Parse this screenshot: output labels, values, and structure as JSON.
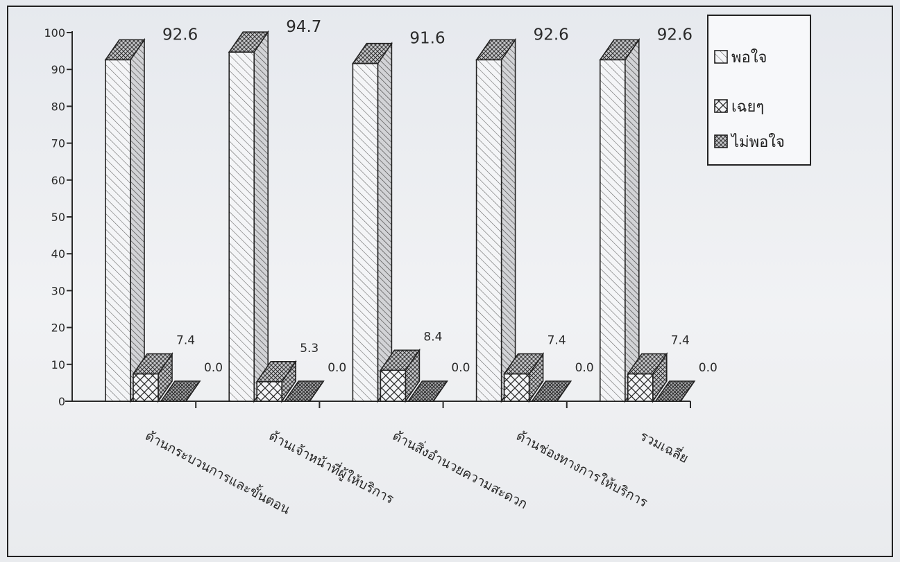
{
  "chart_data": {
    "type": "bar",
    "title": "",
    "xlabel": "",
    "ylabel": "",
    "ylim": [
      0,
      100
    ],
    "y_ticks": [
      0,
      10,
      20,
      30,
      40,
      50,
      60,
      70,
      80,
      90,
      100
    ],
    "grid": false,
    "legend_position": "top-right",
    "categories": [
      "ด้านกระบวนการและขั้นตอน",
      "ด้านเจ้าหน้าที่ผู้ให้บริการ",
      "ด้านสิ่งอำนวยความสะดวก",
      "ด้านช่องทางการให้บริการ",
      "รวมเฉลี่ย"
    ],
    "series": [
      {
        "name": "พอใจ",
        "values": [
          92.6,
          94.7,
          91.6,
          92.6,
          92.6
        ],
        "labels": [
          "92.6",
          "94.7",
          "91.6",
          "92.6",
          "92.6"
        ]
      },
      {
        "name": "เฉยๆ",
        "values": [
          7.4,
          5.3,
          8.4,
          7.4,
          7.4
        ],
        "labels": [
          "7.4",
          "5.3",
          "8.4",
          "7.4",
          "7.4"
        ]
      },
      {
        "name": "ไม่พอใจ",
        "values": [
          0.0,
          0.0,
          0.0,
          0.0,
          0.0
        ],
        "labels": [
          "0.0",
          "0.0",
          "0.0",
          "0.0",
          "0.0"
        ]
      }
    ],
    "colors": {
      "face": "#f4f5f7",
      "ink": "#2a2a2a",
      "side": "#d9dadd",
      "top": "#c9cacd"
    }
  }
}
